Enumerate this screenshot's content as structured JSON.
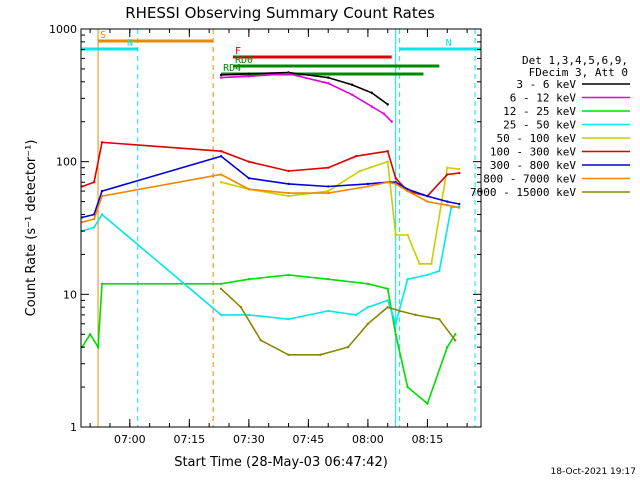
{
  "chart_data": {
    "type": "line",
    "title": "RHESSI Observing Summary Count Rates",
    "xlabel": "Start Time (28-May-03 06:47:42)",
    "ylabel": "Count Rate (s⁻¹ detector⁻¹)",
    "y_scale": "log",
    "ylim": [
      1,
      1000
    ],
    "xlim": [
      "06:47:42",
      "08:28:30"
    ],
    "x_ticks": [
      "07:00",
      "07:15",
      "07:30",
      "07:45",
      "08:00",
      "08:15"
    ],
    "y_ticks": [
      "1",
      "10",
      "100",
      "1000"
    ],
    "legend_position": "right",
    "legend_header": [
      "Det 1,3,4,5,6,9,",
      "FDecim 3, Att 0"
    ],
    "footer_date": "18-Oct-2021 19:17",
    "series": [
      {
        "name": "3 - 6 keV",
        "color": "#000000",
        "x": [
          "07:23",
          "07:30",
          "07:40",
          "07:50",
          "07:56",
          "08:01",
          "08:05"
        ],
        "y": [
          450,
          460,
          470,
          430,
          380,
          330,
          270
        ]
      },
      {
        "name": "6 - 12 keV",
        "color": "#e000e0",
        "x": [
          "07:23",
          "07:30",
          "07:40",
          "07:50",
          "07:56",
          "08:01",
          "08:04",
          "08:06"
        ],
        "y": [
          430,
          440,
          460,
          390,
          320,
          260,
          230,
          200
        ]
      },
      {
        "name": "12 - 25 keV",
        "color": "#00dd00",
        "x": [
          "06:48",
          "06:50",
          "06:52",
          "06:53",
          "07:23",
          "07:30",
          "07:40",
          "07:50",
          "08:00",
          "08:05",
          "08:07",
          "08:10",
          "08:15",
          "08:20",
          "08:22"
        ],
        "y": [
          4,
          5,
          4,
          12,
          12,
          13,
          14,
          13,
          12,
          11,
          5,
          2,
          1.5,
          4,
          5
        ]
      },
      {
        "name": "25 - 50 keV",
        "color": "#00e8e8",
        "x": [
          "06:48",
          "06:51",
          "06:53",
          "07:23",
          "07:30",
          "07:40",
          "07:50",
          "07:57",
          "08:00",
          "08:05",
          "08:07",
          "08:10",
          "08:15",
          "08:18",
          "08:21",
          "08:23"
        ],
        "y": [
          30,
          32,
          40,
          7,
          7,
          6.5,
          7.5,
          7,
          8,
          9,
          6,
          13,
          14,
          15,
          45,
          46
        ]
      },
      {
        "name": "50 - 100 keV",
        "color": "#cccc00",
        "x": [
          "07:23",
          "07:30",
          "07:40",
          "07:50",
          "07:58",
          "08:05",
          "08:07",
          "08:10",
          "08:13",
          "08:16",
          "08:20",
          "08:23"
        ],
        "y": [
          70,
          62,
          55,
          60,
          85,
          100,
          28,
          28,
          17,
          17,
          90,
          88
        ]
      },
      {
        "name": "100 - 300 keV",
        "color": "#dd0000",
        "x": [
          "06:48",
          "06:51",
          "06:53",
          "07:23",
          "07:30",
          "07:40",
          "07:50",
          "07:57",
          "08:05",
          "08:07",
          "08:10",
          "08:15",
          "08:20",
          "08:23"
        ],
        "y": [
          65,
          70,
          140,
          120,
          100,
          85,
          90,
          110,
          120,
          75,
          60,
          55,
          80,
          82
        ]
      },
      {
        "name": "300 - 800 keV",
        "color": "#0000dd",
        "x": [
          "06:48",
          "06:51",
          "06:53",
          "07:23",
          "07:30",
          "07:40",
          "07:50",
          "08:00",
          "08:05",
          "08:07",
          "08:10",
          "08:15",
          "08:20",
          "08:23"
        ],
        "y": [
          38,
          40,
          60,
          110,
          75,
          68,
          65,
          68,
          70,
          70,
          62,
          55,
          50,
          48
        ]
      },
      {
        "name": "800 - 7000 keV",
        "color": "#ee8800",
        "x": [
          "06:48",
          "06:51",
          "06:53",
          "07:23",
          "07:30",
          "07:40",
          "07:50",
          "08:00",
          "08:05",
          "08:07",
          "08:10",
          "08:15",
          "08:20",
          "08:23"
        ],
        "y": [
          35,
          37,
          55,
          80,
          62,
          58,
          58,
          65,
          70,
          68,
          60,
          50,
          47,
          45
        ]
      },
      {
        "name": "7000 - 15000 keV",
        "color": "#888800",
        "x": [
          "07:23",
          "07:28",
          "07:33",
          "07:40",
          "07:48",
          "07:55",
          "08:00",
          "08:05",
          "08:08",
          "08:12",
          "08:18",
          "08:22"
        ],
        "y": [
          11,
          8,
          4.5,
          3.5,
          3.5,
          4,
          6,
          8,
          7.5,
          7,
          6.5,
          4.5
        ]
      }
    ],
    "flags": [
      {
        "label": "S",
        "color": "#ee8800",
        "start": "06:52",
        "end": "07:21"
      },
      {
        "label": "N",
        "color": "#00e8e8",
        "start": "06:47:42",
        "end": "07:02"
      },
      {
        "label": "N",
        "color": "#00e8e8",
        "start": "08:08",
        "end": "08:28:30"
      },
      {
        "label": "F",
        "color": "#dd0000",
        "start": "07:26",
        "end": "08:06"
      },
      {
        "label": "RD0",
        "color": "#008800",
        "start": "07:26",
        "end": "08:18"
      },
      {
        "label": "RD4",
        "color": "#008800",
        "start": "07:23",
        "end": "08:14"
      }
    ],
    "vlines": [
      {
        "x": "06:52",
        "color": "#ee8800",
        "style": "solid"
      },
      {
        "x": "07:02",
        "color": "#00e8e8",
        "style": "dashed"
      },
      {
        "x": "07:21",
        "color": "#ee8800",
        "style": "dashed"
      },
      {
        "x": "08:07",
        "color": "#00e8e8",
        "style": "solid"
      },
      {
        "x": "08:08",
        "color": "#00e8e8",
        "style": "dashed"
      },
      {
        "x": "08:27",
        "color": "#00e8e8",
        "style": "dashed"
      }
    ]
  }
}
